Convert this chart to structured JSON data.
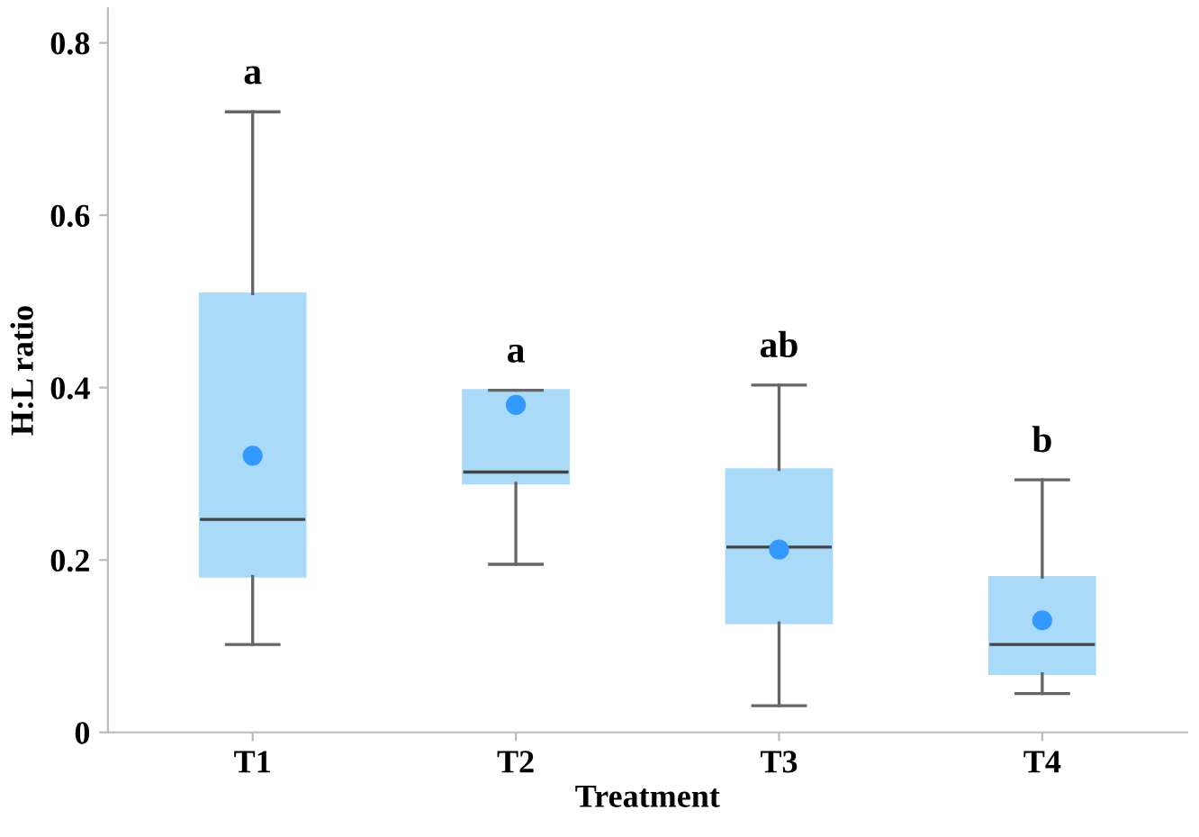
{
  "chart_data": {
    "type": "box",
    "xlabel": "Treatment",
    "ylabel": "H:L ratio",
    "categories": [
      "T1",
      "T2",
      "T3",
      "T4"
    ],
    "boxes": [
      {
        "low": 0.102,
        "q1": 0.181,
        "median": 0.247,
        "q3": 0.509,
        "high": 0.72,
        "mean": 0.321
      },
      {
        "low": 0.195,
        "q1": 0.289,
        "median": 0.302,
        "q3": 0.397,
        "high": 0.397,
        "mean": 0.38
      },
      {
        "low": 0.031,
        "q1": 0.127,
        "median": 0.215,
        "q3": 0.305,
        "high": 0.403,
        "mean": 0.212
      },
      {
        "low": 0.045,
        "q1": 0.068,
        "median": 0.102,
        "q3": 0.18,
        "high": 0.293,
        "mean": 0.13
      }
    ],
    "color": "#a9dbf8",
    "ylim": [
      0,
      0.84
    ],
    "yticks": [
      0,
      0.2,
      0.4,
      0.6,
      0.8
    ],
    "annotations": [
      "a",
      "a",
      "ab",
      "b"
    ],
    "grid": false
  }
}
